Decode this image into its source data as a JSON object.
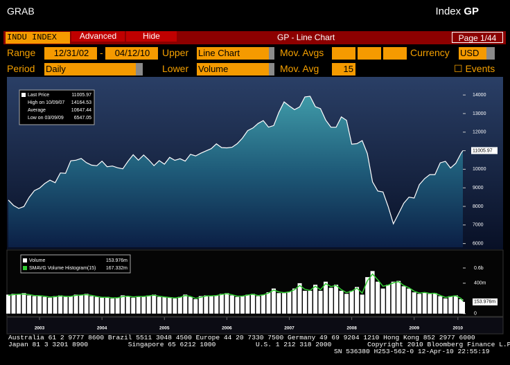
{
  "header": {
    "left": "GRAB",
    "right_prefix": "Index",
    "right_code": "GP"
  },
  "toolbar": {
    "security": "INDU INDEX",
    "tabs": [
      "Advanced",
      "Hide"
    ],
    "title": "GP - Line Chart",
    "page": "Page 1/44"
  },
  "settings": {
    "range_label": "Range",
    "start": "12/31/02",
    "dash": "-",
    "end": "04/12/10",
    "upper_label": "Upper",
    "upper": "Line Chart",
    "mov_avgs_label": "Mov. Avgs",
    "currency_label": "Currency",
    "currency": "USD",
    "period_label": "Period",
    "period": "Daily",
    "lower_label": "Lower",
    "lower": "Volume",
    "mov_avg_label": "Mov. Avg",
    "mov_avg": 15,
    "events": "☐ Events"
  },
  "chart_data": [
    {
      "type": "area",
      "xlim": [
        2003,
        2010.28
      ],
      "ylim": [
        5800,
        14900
      ],
      "yticks": [
        6000,
        7000,
        8000,
        9000,
        10000,
        11000,
        12000,
        13000,
        14000
      ],
      "x": [
        2003,
        2003.083,
        2003.167,
        2003.25,
        2003.333,
        2003.417,
        2003.5,
        2003.583,
        2003.667,
        2003.75,
        2003.833,
        2003.917,
        2004,
        2004.083,
        2004.167,
        2004.25,
        2004.333,
        2004.417,
        2004.5,
        2004.583,
        2004.667,
        2004.75,
        2004.833,
        2004.917,
        2005,
        2005.083,
        2005.167,
        2005.25,
        2005.333,
        2005.417,
        2005.5,
        2005.583,
        2005.667,
        2005.75,
        2005.833,
        2005.917,
        2006,
        2006.083,
        2006.167,
        2006.25,
        2006.333,
        2006.417,
        2006.5,
        2006.583,
        2006.667,
        2006.75,
        2006.833,
        2006.917,
        2007,
        2007.083,
        2007.167,
        2007.25,
        2007.333,
        2007.417,
        2007.5,
        2007.583,
        2007.667,
        2007.75,
        2007.833,
        2007.917,
        2008,
        2008.083,
        2008.167,
        2008.25,
        2008.333,
        2008.417,
        2008.5,
        2008.583,
        2008.667,
        2008.75,
        2008.833,
        2008.917,
        2009,
        2009.083,
        2009.167,
        2009.25,
        2009.333,
        2009.417,
        2009.5,
        2009.583,
        2009.667,
        2009.75,
        2009.833,
        2009.917,
        2010,
        2010.083,
        2010.167,
        2010.25,
        2010.28
      ],
      "series": [
        {
          "name": "Last Price",
          "color": "#ffffff",
          "values": [
            8342,
            8054,
            7891,
            7992,
            8480,
            8850,
            8985,
            9233,
            9415,
            9275,
            9801,
            9782,
            10453,
            10488,
            10583,
            10357,
            10225,
            10188,
            10435,
            10139,
            10173,
            10080,
            10027,
            10428,
            10783,
            10489,
            10766,
            10503,
            10192,
            10467,
            10275,
            10640,
            10481,
            10568,
            10440,
            10806,
            10718,
            10864,
            10993,
            11109,
            11367,
            11168,
            11150,
            11185,
            11381,
            11679,
            12081,
            12221,
            12463,
            12621,
            12268,
            12354,
            13063,
            13627,
            13408,
            13212,
            13358,
            13896,
            13930,
            13372,
            13265,
            12650,
            12266,
            12263,
            12820,
            12638,
            11350,
            11378,
            11544,
            10851,
            9325,
            8829,
            8776,
            8001,
            7063,
            7609,
            8168,
            8500,
            8447,
            9172,
            9496,
            9712,
            9713,
            10345,
            10428,
            10067,
            10325,
            10857,
            11005.97
          ]
        }
      ],
      "last_price": 11005.97,
      "stats": [
        {
          "label": "High on 10/09/07",
          "value": 14164.53
        },
        {
          "label": "Average",
          "value": 10647.44
        },
        {
          "label": "Low on 03/09/09",
          "value": 6547.05
        }
      ]
    },
    {
      "type": "bar",
      "xlim": [
        2003,
        2010.28
      ],
      "ylim": [
        -20,
        800
      ],
      "yticks": [
        0,
        {
          "value": 400,
          "label": "400m"
        },
        {
          "value": 600,
          "label": "0.6b"
        }
      ],
      "xticks": [
        {
          "value": 2003.5,
          "label": "2003"
        },
        {
          "value": 2004.5,
          "label": "2004"
        },
        {
          "value": 2005.5,
          "label": "2005"
        },
        {
          "value": 2006.5,
          "label": "2006"
        },
        {
          "value": 2007.5,
          "label": "2007"
        },
        {
          "value": 2008.5,
          "label": "2008"
        },
        {
          "value": 2009.5,
          "label": "2009"
        },
        {
          "value": 2010.2,
          "label": "2010"
        }
      ],
      "x": [
        2003,
        2003.083,
        2003.167,
        2003.25,
        2003.333,
        2003.417,
        2003.5,
        2003.583,
        2003.667,
        2003.75,
        2003.833,
        2003.917,
        2004,
        2004.083,
        2004.167,
        2004.25,
        2004.333,
        2004.417,
        2004.5,
        2004.583,
        2004.667,
        2004.75,
        2004.833,
        2004.917,
        2005,
        2005.083,
        2005.167,
        2005.25,
        2005.333,
        2005.417,
        2005.5,
        2005.583,
        2005.667,
        2005.75,
        2005.833,
        2005.917,
        2006,
        2006.083,
        2006.167,
        2006.25,
        2006.333,
        2006.417,
        2006.5,
        2006.583,
        2006.667,
        2006.75,
        2006.833,
        2006.917,
        2007,
        2007.083,
        2007.167,
        2007.25,
        2007.333,
        2007.417,
        2007.5,
        2007.583,
        2007.667,
        2007.75,
        2007.833,
        2007.917,
        2008,
        2008.083,
        2008.167,
        2008.25,
        2008.333,
        2008.417,
        2008.5,
        2008.583,
        2008.667,
        2008.75,
        2008.833,
        2008.917,
        2009,
        2009.083,
        2009.167,
        2009.25,
        2009.333,
        2009.417,
        2009.5,
        2009.583,
        2009.667,
        2009.75,
        2009.833,
        2009.917,
        2010,
        2010.083,
        2010.167,
        2010.25,
        2010.28
      ],
      "series": [
        {
          "name": "Volume",
          "color": "#ffffff",
          "values": [
            250,
            260,
            250,
            270,
            240,
            230,
            240,
            220,
            210,
            230,
            240,
            220,
            230,
            250,
            240,
            260,
            230,
            220,
            210,
            220,
            200,
            210,
            240,
            230,
            210,
            230,
            220,
            240,
            250,
            220,
            220,
            210,
            200,
            220,
            250,
            220,
            190,
            230,
            240,
            230,
            240,
            260,
            270,
            240,
            220,
            230,
            250,
            260,
            230,
            250,
            280,
            330,
            270,
            270,
            290,
            330,
            400,
            300,
            300,
            380,
            300,
            420,
            340,
            380,
            300,
            260,
            300,
            350,
            250,
            480,
            560,
            420,
            330,
            380,
            420,
            430,
            360,
            330,
            280,
            260,
            280,
            260,
            270,
            230,
            200,
            230,
            240,
            190,
            153.976
          ]
        },
        {
          "name": "SMAVG Volume Histogram(15)",
          "color": "#33cc33",
          "values": [
            240,
            250,
            255,
            258,
            250,
            238,
            235,
            228,
            218,
            222,
            232,
            226,
            226,
            240,
            244,
            250,
            240,
            225,
            215,
            215,
            208,
            208,
            225,
            230,
            220,
            225,
            226,
            234,
            242,
            228,
            220,
            212,
            206,
            215,
            238,
            226,
            200,
            215,
            232,
            232,
            238,
            252,
            262,
            248,
            230,
            230,
            244,
            254,
            238,
            246,
            270,
            310,
            285,
            275,
            285,
            315,
            370,
            320,
            305,
            360,
            315,
            395,
            355,
            370,
            315,
            275,
            295,
            335,
            270,
            430,
            520,
            445,
            360,
            375,
            405,
            420,
            370,
            340,
            295,
            270,
            278,
            265,
            268,
            240,
            212,
            225,
            235,
            200,
            167.332
          ]
        }
      ],
      "legend_values": [
        "153.976m",
        "167.332m"
      ]
    }
  ],
  "footer": [
    "Australia 61 2 9777 8600 Brazil 5511 3048 4500 Europe 44 20 7330 7500 Germany 49 69 9204 1210 Hong Kong 852 2977 6000",
    "Japan 81 3 3201 8900          Singapore 65 6212 1000          U.S. 1 212 318 2000         Copyright 2010 Bloomberg Finance L.P.",
    "SN 536380 H253-562-0 12-Apr-10 22:55:19"
  ]
}
